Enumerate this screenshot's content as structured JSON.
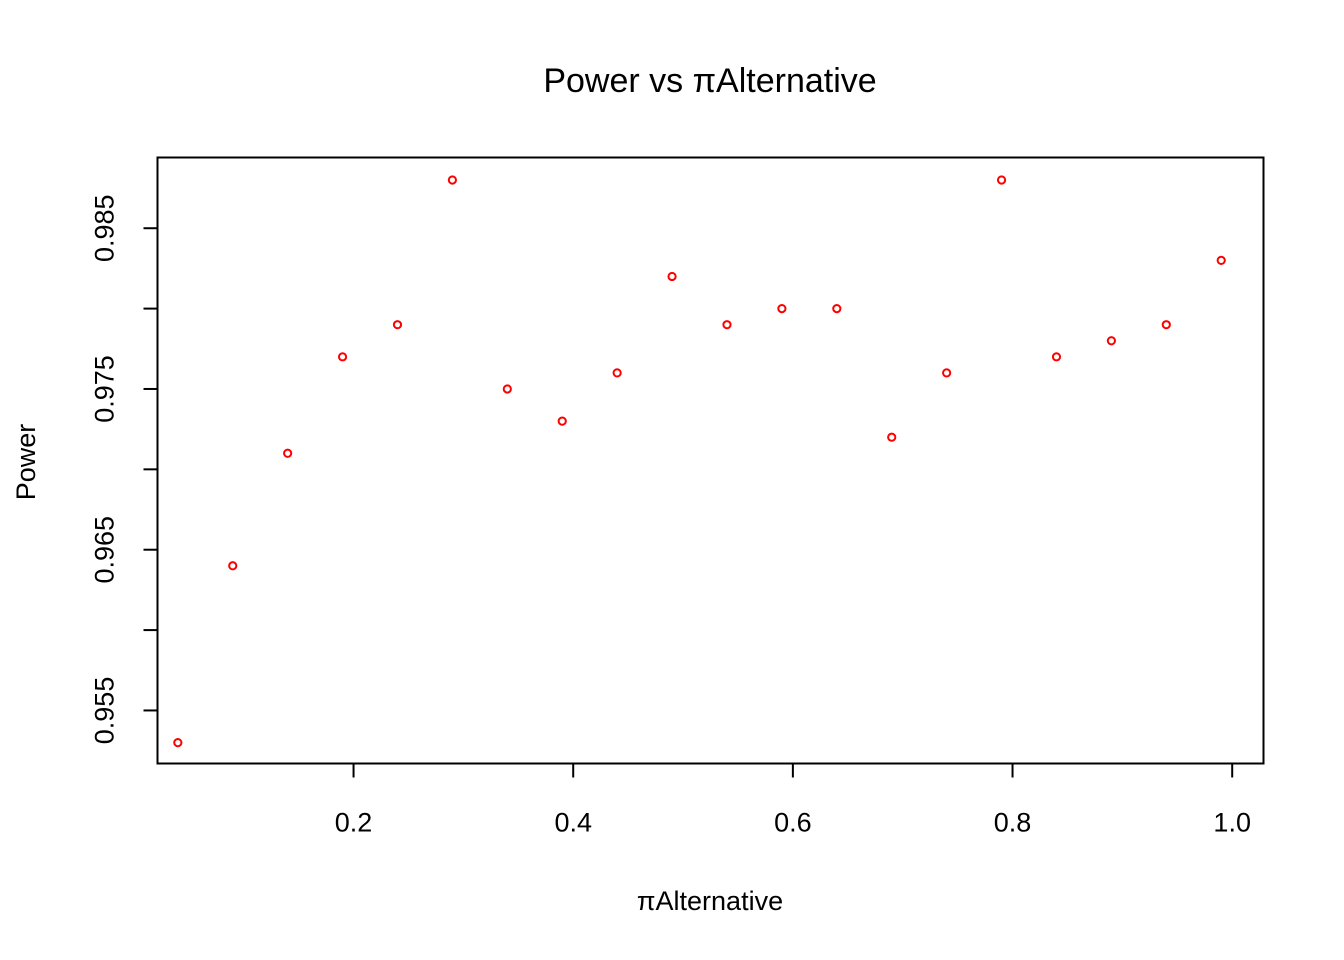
{
  "chart_data": {
    "type": "scatter",
    "title": "Power vs πAlternative",
    "xlabel": "πAlternative",
    "ylabel": "Power",
    "xlim": [
      0.0215,
      1.0285
    ],
    "ylim": [
      0.9517,
      0.9894
    ],
    "x_ticks": [
      0.2,
      0.4,
      0.6,
      0.8,
      1.0
    ],
    "x_tick_labels": [
      "0.2",
      "0.4",
      "0.6",
      "0.8",
      "1.0"
    ],
    "y_ticks": [
      0.955,
      0.96,
      0.965,
      0.97,
      0.975,
      0.98,
      0.985
    ],
    "y_tick_labels": [
      "0.955",
      "",
      "0.965",
      "",
      "0.975",
      "",
      "0.985"
    ],
    "grid": false,
    "legend": "none",
    "marker": "open-circle",
    "point_color": "#ff0000",
    "x": [
      0.04,
      0.09,
      0.14,
      0.19,
      0.24,
      0.29,
      0.34,
      0.39,
      0.44,
      0.49,
      0.54,
      0.59,
      0.64,
      0.69,
      0.74,
      0.79,
      0.84,
      0.89,
      0.94,
      0.99
    ],
    "y": [
      0.953,
      0.964,
      0.971,
      0.977,
      0.979,
      0.988,
      0.975,
      0.973,
      0.976,
      0.982,
      0.979,
      0.98,
      0.98,
      0.972,
      0.976,
      0.988,
      0.977,
      0.978,
      0.979,
      0.983
    ]
  }
}
